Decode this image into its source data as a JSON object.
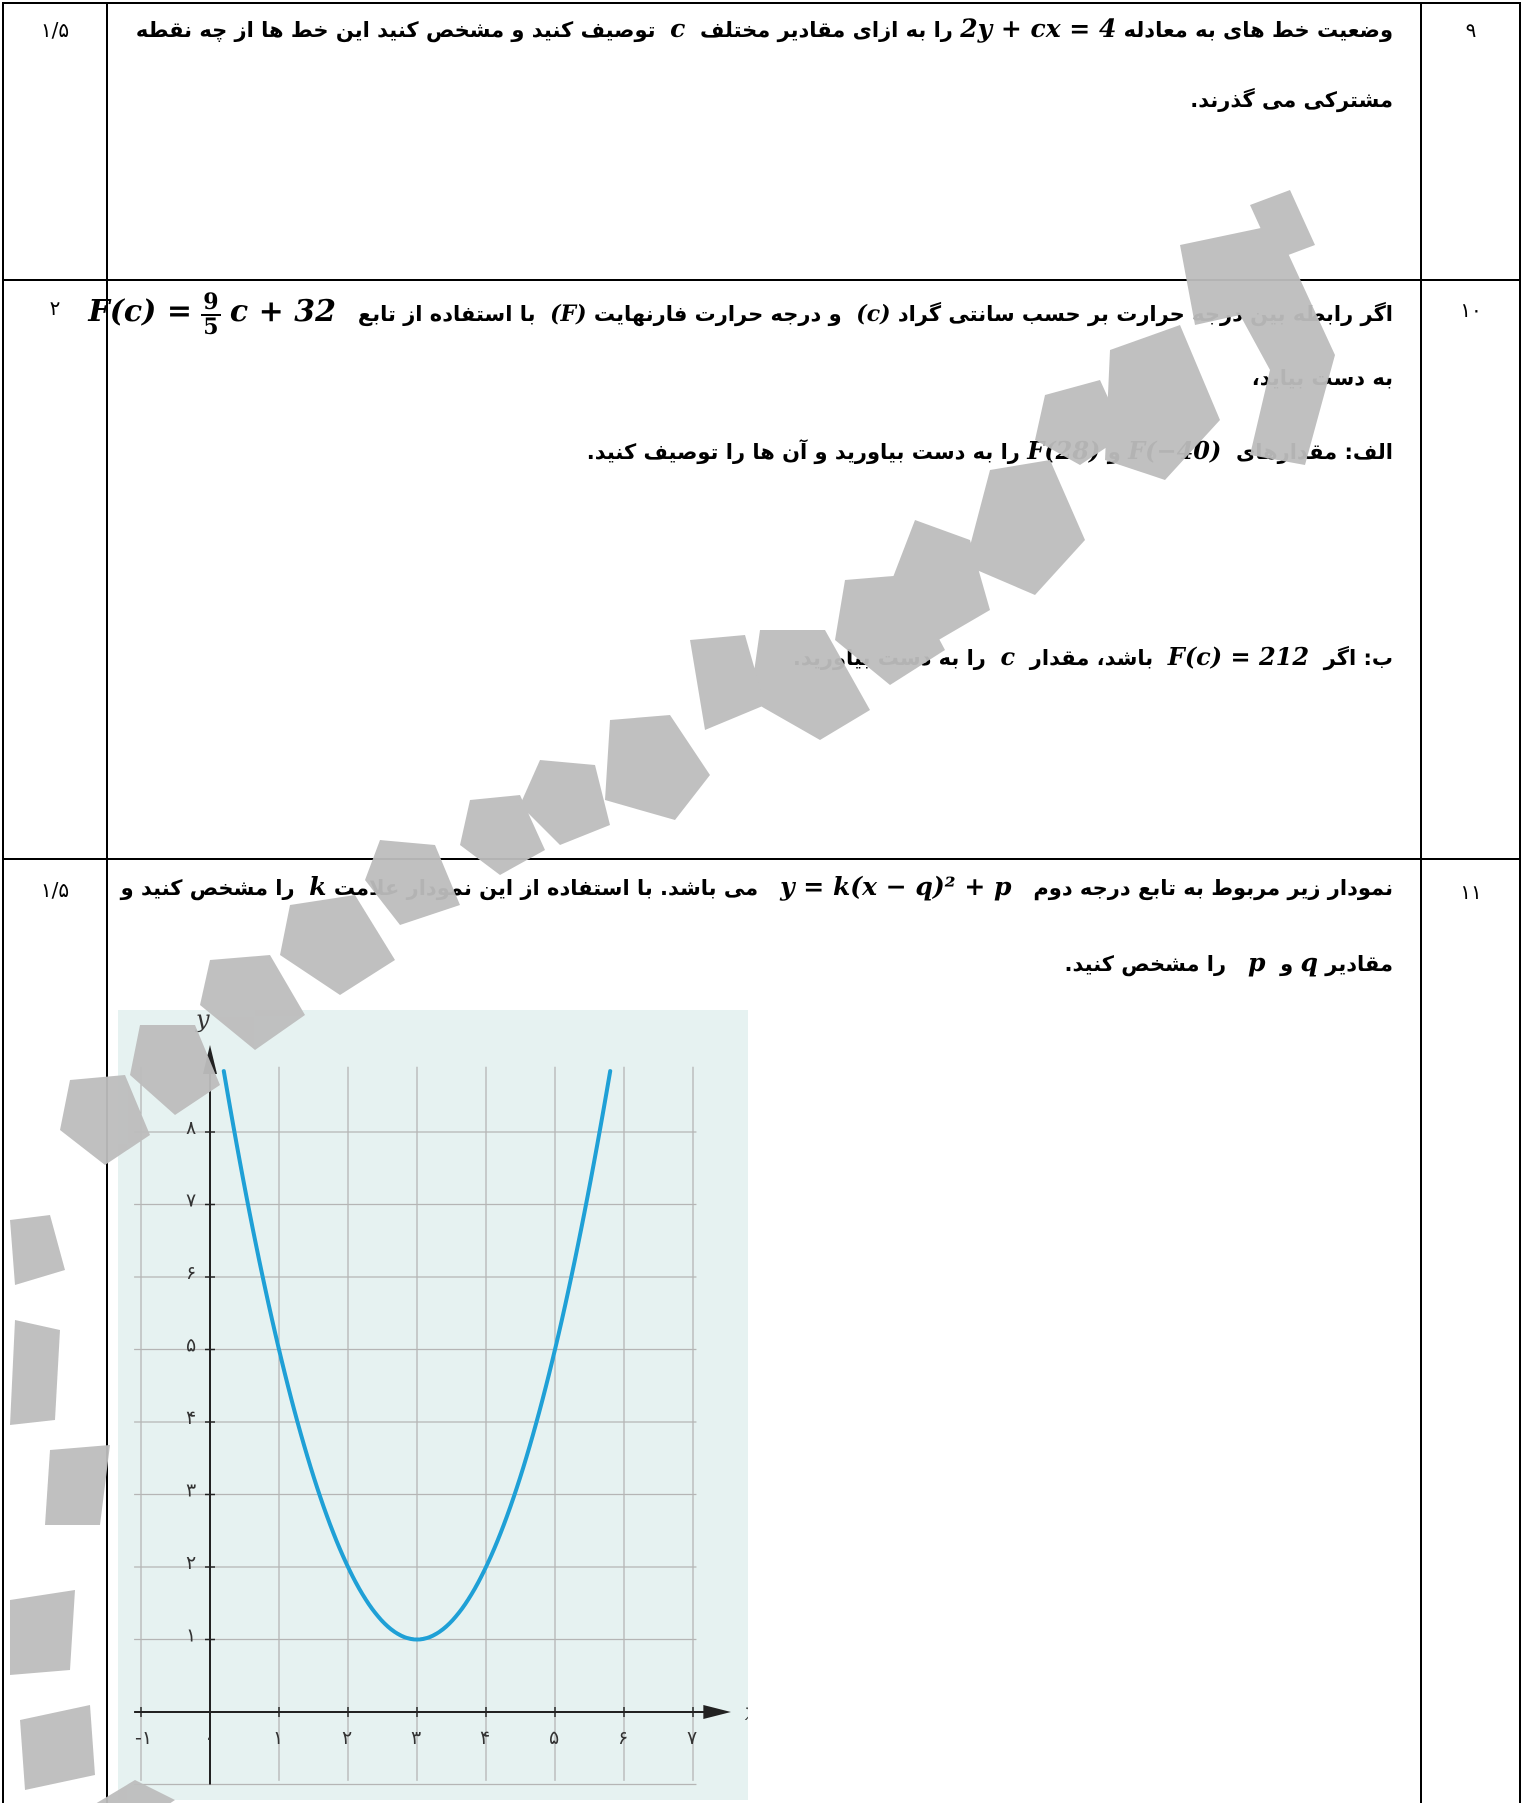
{
  "q9": {
    "num": "۹",
    "score": "۱/۵",
    "text_a": "وضعیت خط های به معادله",
    "equation": "2y + cx = 4",
    "text_b": "را به ازای مقادیر مختلف",
    "var": "c",
    "text_c": "توصیف کنید و مشخص کنید این خط ها از چه نقطه",
    "line2": "مشترکی می گذرند."
  },
  "q10": {
    "num": "۱۰",
    "score": "۲",
    "l1_a": "اگر رابطه بین درجه حرارت بر حسب سانتی گراد",
    "l1_c": "(c)",
    "l1_b": "و درجه حرارت فارنهایت",
    "l1_F": "(F)",
    "l1_d": "با استفاده از تابع",
    "func_lhs": "F(c) =",
    "frac_num": "9",
    "frac_den": "5",
    "func_rhs": "c + 32",
    "l2": "به دست بیاید،",
    "partA_label": "الف:",
    "partA_a": "مقدارهای",
    "partA_m1": "F(−40)",
    "partA_and": "و",
    "partA_m2": "F(28)",
    "partA_b": "را به دست بیاورید و آن ها را توصیف کنید.",
    "partB_label": "ب:",
    "partB_a": "اگر",
    "partB_m": "F(c) = 212",
    "partB_b": "باشد، مقدار",
    "partB_var": "c",
    "partB_c": "را به دست بیاورید."
  },
  "q11": {
    "num": "۱۱",
    "score": "۱/۵",
    "l1_a": "نمودار زیر مربوط به تابع درجه دوم",
    "equation": "y = k(x − q)² + p",
    "l1_b": "می باشد. با استفاده از این نمودار علامت",
    "var_k": "k",
    "l1_c": "را مشخص کنید و",
    "l2_a": "مقادیر",
    "var_q": "q",
    "l2_and": "و",
    "var_p": "p",
    "l2_b": "را مشخص کنید."
  },
  "chart_data": {
    "type": "line",
    "xlabel": "x",
    "ylabel": "y",
    "xlim": [
      -1,
      7
    ],
    "ylim": [
      -1,
      9
    ],
    "x_ticks": [
      -1,
      0,
      1,
      2,
      3,
      4,
      5,
      6,
      7
    ],
    "x_tick_labels": [
      "-۱",
      "۰",
      "۱",
      "۲",
      "۳",
      "۴",
      "۵",
      "۶",
      "۷"
    ],
    "y_ticks": [
      1,
      2,
      3,
      4,
      5,
      6,
      7,
      8
    ],
    "y_tick_labels": [
      "۱",
      "۲",
      "۳",
      "۴",
      "۵",
      "۶",
      "۷",
      "۸"
    ],
    "grid": true,
    "background": "#e6f2f1",
    "series": [
      {
        "color": "#1fa0d6",
        "x": [
          0.2,
          1,
          2,
          3,
          4,
          5,
          5.8
        ],
        "y": [
          8.84,
          5,
          2,
          1,
          2,
          5,
          8.84
        ]
      }
    ]
  },
  "watermark_color": "#bdbdbd"
}
